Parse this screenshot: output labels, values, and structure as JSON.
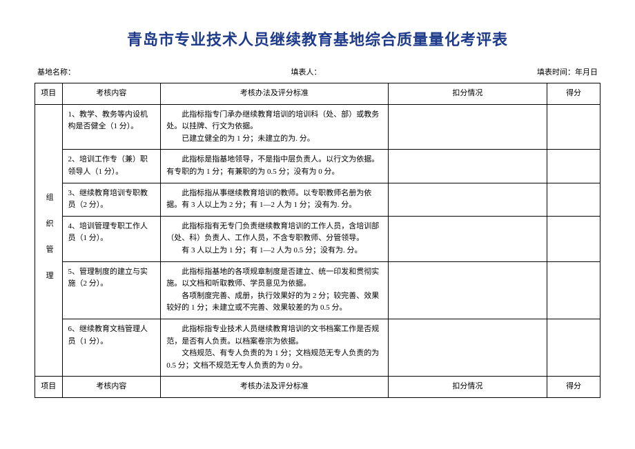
{
  "title": "青岛市专业技术人员继续教育基地综合质量量化考评表",
  "meta": {
    "base_label": "基地名称：",
    "filler_label": "填表人：",
    "date_label": "填表时间：年月日"
  },
  "headers": {
    "project": "项目",
    "content": "考核内容",
    "method": "考核办法及评分标准",
    "deduct": "扣分情况",
    "score": "得分"
  },
  "group_label": "组  织  管  理",
  "rows": [
    {
      "content": "1、教学、教务等内设机构是否健全（1 分）。",
      "method": "此指标指专门承办继续教育培训的培训科（处、部）或教务处。以挂牌、行文为依据。\n已建立健全的为 1 分；未建立的为. 分。"
    },
    {
      "content": "2、培训工作专（兼）职领导人（1 分）。",
      "method": "此指标是指基地领导，不是指中层负责人。以行文为依据。有专职的为 1 分；有兼职的为 0.5 分；没有为 0 分。"
    },
    {
      "content": "3、继续教育培训专职教员（2 分）。",
      "method": "此指标指从事继续教育培训的教师。以专职教师名册为依据。有 3 人以上为 2 分；有 1—2 人为 1 分；没有为. 分。"
    },
    {
      "content": "4、培训管理专职工作人员（1 分）。",
      "method": "此指标指有无专门负责继续教育培训的工作人员，含培训部（处、科）负责人、工作人员，不含专职教师、分管领导。\n有 3 人以上为 1 分；有 1—2 人为 0.5 分；没有为. 分。"
    },
    {
      "content": "5、管理制度的建立与实施（2 分）。",
      "method": "此指标指基地的各项规章制度是否建立、统一印发和贯彻实施。以文档和听取教师、学员意见为依据。\n各项制度完善、成册，执行效果好的为 2 分；较完善、效果较好的 1 分；未建立或不完善、效果较差的为 0.5 分。"
    },
    {
      "content": "6、继续教育文档管理人员（1 分）。",
      "method": "此指标指专业技术人员继续教育培训的文书档案工作是否规范，是否有人负责。以档案卷宗为依据。\n文档规范、有专人负责的为 1 分；文档规范无专人负责的为 0.5 分；文档不规范无专人负责的为 0 分。"
    }
  ]
}
